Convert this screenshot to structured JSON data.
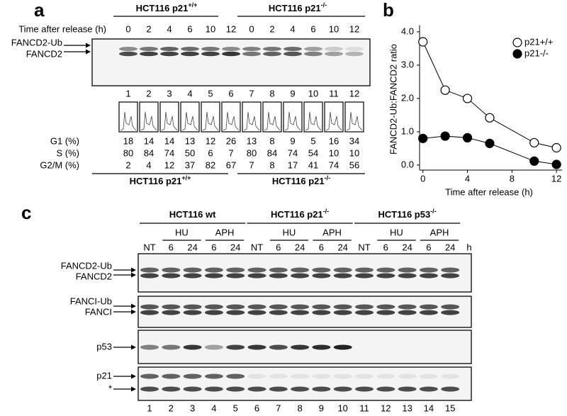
{
  "panel_a": {
    "label": "a",
    "groups": [
      {
        "text": "HCT116 p21",
        "sup": "+/+"
      },
      {
        "text": "HCT116 p21",
        "sup": "-/-"
      }
    ],
    "time_label": "Time after release (h)",
    "times": [
      0,
      2,
      4,
      6,
      10,
      12,
      0,
      2,
      4,
      6,
      10,
      12
    ],
    "band_labels": [
      "FANCD2-Ub",
      "FANCD2"
    ],
    "lanes": [
      1,
      2,
      3,
      4,
      5,
      6,
      7,
      8,
      9,
      10,
      11,
      12
    ],
    "facs_rows": [
      {
        "label": "G1 (%)",
        "values": [
          18,
          14,
          14,
          13,
          12,
          26,
          13,
          8,
          9,
          5,
          16,
          34
        ]
      },
      {
        "label": "S (%)",
        "values": [
          80,
          84,
          74,
          50,
          6,
          7,
          80,
          84,
          74,
          54,
          10,
          10
        ]
      },
      {
        "label": "G2/M (%)",
        "values": [
          2,
          4,
          12,
          37,
          82,
          67,
          7,
          8,
          17,
          41,
          74,
          56
        ]
      }
    ],
    "bottom_groups": [
      {
        "text": "HCT116 p21",
        "sup": "+/+"
      },
      {
        "text": "HCT116 p21",
        "sup": "-/-"
      }
    ]
  },
  "chart_data": {
    "type": "line",
    "panel_label": "b",
    "x_label": "Time after release (h)",
    "y_label": "FANCD2-Ub:FANCD2 ratio",
    "x": [
      0,
      2,
      4,
      6,
      10,
      12
    ],
    "series": [
      {
        "name": "p21+/+",
        "color": "#ffffff",
        "values": [
          3.7,
          2.25,
          2.0,
          1.42,
          0.67,
          0.52
        ]
      },
      {
        "name": "p21-/-",
        "color": "#000000",
        "values": [
          0.8,
          0.87,
          0.82,
          0.65,
          0.12,
          0.02
        ]
      }
    ],
    "xlim": [
      -0.3,
      12.5
    ],
    "ylim": [
      -0.15,
      4.2
    ],
    "xticks": [
      0,
      4,
      8,
      12
    ],
    "yticks": [
      {
        "value": 0,
        "label": "0.0"
      },
      {
        "value": 1,
        "label": "1.0"
      },
      {
        "value": 2,
        "label": "2.0"
      },
      {
        "value": 3,
        "label": "3.0"
      },
      {
        "value": 4,
        "label": "4.0"
      }
    ],
    "legend": "upper right"
  },
  "panel_c": {
    "label": "c",
    "groups": [
      {
        "text": "HCT116 wt",
        "sup": ""
      },
      {
        "text": "HCT116 p21",
        "sup": "-/-"
      },
      {
        "text": "HCT116 p53",
        "sup": "-/-"
      }
    ],
    "treatments": [
      "HU",
      "APH"
    ],
    "lane_headers": [
      "NT",
      "6",
      "24",
      "6",
      "24",
      "NT",
      "6",
      "24",
      "6",
      "24",
      "NT",
      "6",
      "24",
      "6",
      "24"
    ],
    "unit": "h",
    "blots": [
      {
        "labels": [
          "FANCD2-Ub",
          "FANCD2"
        ]
      },
      {
        "labels": [
          "FANCI-Ub",
          "FANCI"
        ]
      },
      {
        "labels": [
          "p53"
        ]
      },
      {
        "labels": [
          "p21",
          "*"
        ]
      }
    ],
    "lanes": [
      1,
      2,
      3,
      4,
      5,
      6,
      7,
      8,
      9,
      10,
      11,
      12,
      13,
      14,
      15
    ]
  }
}
